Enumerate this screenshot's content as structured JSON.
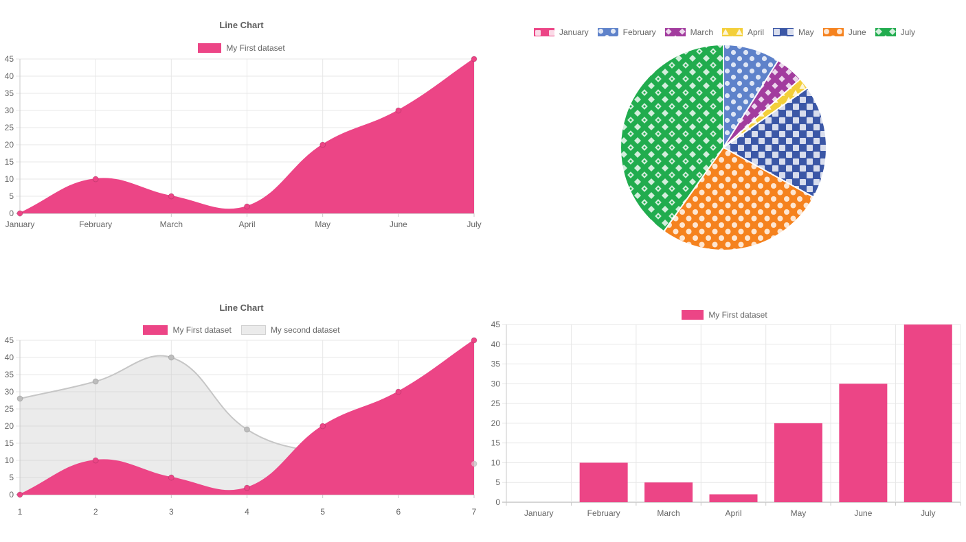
{
  "page": {
    "background": "#FFFFFF",
    "text_color": "#666666",
    "title_color": "#5E5E5E",
    "grid_color": "#E7E7E7",
    "axis_color": "#ABABAB",
    "tick_color": "#C8C8C8"
  },
  "chart_data": [
    {
      "type": "area",
      "title": "Line Chart",
      "legend_position": "top",
      "grid": true,
      "smooth": true,
      "categories": [
        "January",
        "February",
        "March",
        "April",
        "May",
        "June",
        "July"
      ],
      "series": [
        {
          "name": "My First dataset",
          "color": "#EC4586",
          "fill": "#EC4586",
          "values": [
            0,
            10,
            5,
            2,
            20,
            30,
            45
          ]
        }
      ],
      "ylim": [
        0,
        45
      ],
      "yticks": [
        0,
        5,
        10,
        15,
        20,
        25,
        30,
        35,
        40,
        45
      ]
    },
    {
      "type": "pie",
      "legend_position": "top",
      "slice_border_color": "#FFFFFF",
      "pattern_overlay_color": "rgba(255,255,255,0.8)",
      "slices": [
        {
          "label": "January",
          "value": 0,
          "color": "#EC4586",
          "pattern": "square"
        },
        {
          "label": "February",
          "value": 10,
          "color": "#5E82CA",
          "pattern": "disc"
        },
        {
          "label": "March",
          "value": 5,
          "color": "#A23C9E",
          "pattern": "diamond"
        },
        {
          "label": "April",
          "value": 2,
          "color": "#F3CF3A",
          "pattern": "triangle"
        },
        {
          "label": "May",
          "value": 20,
          "color": "#3B57A6",
          "pattern": "box"
        },
        {
          "label": "June",
          "value": 30,
          "color": "#F5821E",
          "pattern": "disc-large"
        },
        {
          "label": "July",
          "value": 45,
          "color": "#21AC4E",
          "pattern": "diamond-box"
        }
      ]
    },
    {
      "type": "area",
      "title": "Line Chart",
      "legend_position": "top",
      "grid": true,
      "smooth": true,
      "categories": [
        "1",
        "2",
        "3",
        "4",
        "5",
        "6",
        "7"
      ],
      "series": [
        {
          "name": "My First dataset",
          "color": "#EC4586",
          "fill": "#EC4586",
          "values": [
            0,
            10,
            5,
            2,
            20,
            30,
            45
          ]
        },
        {
          "name": "My second dataset",
          "color": "#C6C6C6",
          "fill": "rgba(199,199,199,0.35)",
          "point_color": "#BDBDBD",
          "values": [
            28,
            33,
            40,
            19,
            12,
            10,
            9
          ]
        }
      ],
      "ylim": [
        0,
        45
      ],
      "yticks": [
        0,
        5,
        10,
        15,
        20,
        25,
        30,
        35,
        40,
        45
      ]
    },
    {
      "type": "bar",
      "legend_position": "top",
      "grid": true,
      "categories": [
        "January",
        "February",
        "March",
        "April",
        "May",
        "June",
        "July"
      ],
      "series": [
        {
          "name": "My First dataset",
          "color": "#EC4586",
          "values": [
            0,
            10,
            5,
            2,
            20,
            30,
            45
          ]
        }
      ],
      "ylim": [
        0,
        45
      ],
      "yticks": [
        0,
        5,
        10,
        15,
        20,
        25,
        30,
        35,
        40,
        45
      ]
    }
  ]
}
